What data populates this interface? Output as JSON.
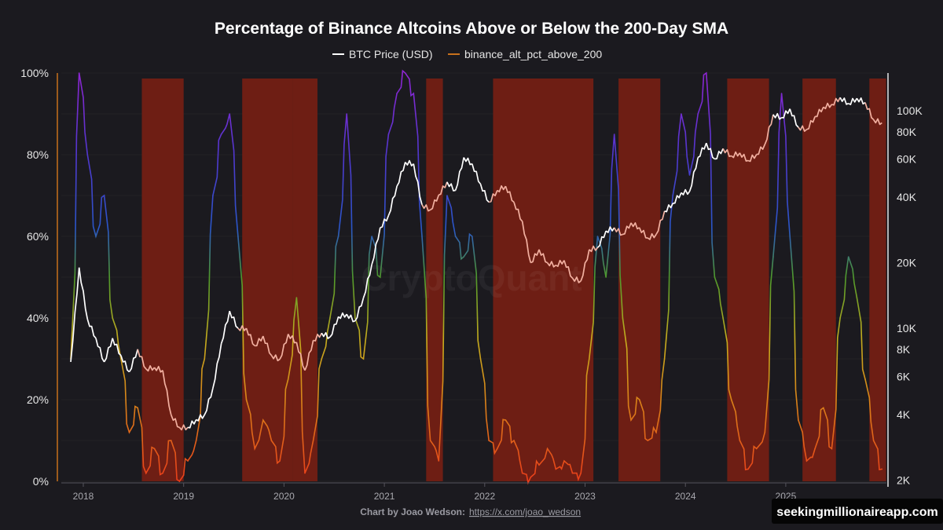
{
  "title": "Percentage of Binance Altcoins Above or Below the 200-Day SMA",
  "credit": {
    "label": "Chart by Joao Wedson:",
    "link": "https://x.com/joao_wedson"
  },
  "watermark": "CryptoQuant",
  "badge": "seekingmillionaireapp.com",
  "colors": {
    "background": "#1b1a1f",
    "btc": "#ffffff",
    "btc_in_band": "#f2b0a0",
    "band": "#6e1e14",
    "alt_axis": "#c8711c",
    "gradient": [
      [
        "0",
        "#ea3d1a"
      ],
      [
        "20",
        "#d98419"
      ],
      [
        "35",
        "#c5ad1e"
      ],
      [
        "50",
        "#4f9a2b"
      ],
      [
        "62",
        "#2a56c9"
      ],
      [
        "80",
        "#5137cf"
      ],
      [
        "100",
        "#8e25d2"
      ]
    ]
  },
  "chart_data": {
    "type": "line",
    "title": "Percentage of Binance Altcoins Above or Below the 200-Day SMA",
    "legend": {
      "placement": "top-center",
      "entries": [
        "BTC Price (USD)",
        "binance_alt_pct_above_200"
      ]
    },
    "grid": true,
    "x_axis": {
      "type": "date",
      "range": [
        "2017-11",
        "2025-12"
      ],
      "ticks": [
        "2018",
        "2019",
        "2020",
        "2021",
        "2022",
        "2023",
        "2024",
        "2025"
      ]
    },
    "y_left": {
      "range": [
        0,
        100
      ],
      "unit": "%",
      "ticks": [
        "0%",
        "20%",
        "40%",
        "60%",
        "80%",
        "100%"
      ]
    },
    "y_right": {
      "scale": "log",
      "range": [
        2000,
        150000
      ],
      "ticks": [
        [
          "2K",
          2000
        ],
        [
          "4K",
          4000
        ],
        [
          "6K",
          6000
        ],
        [
          "8K",
          8000
        ],
        [
          "10K",
          10000
        ],
        [
          "20K",
          20000
        ],
        [
          "40K",
          40000
        ],
        [
          "60K",
          60000
        ],
        [
          "80K",
          80000
        ],
        [
          "100K",
          100000
        ]
      ]
    },
    "highlight_bands": [
      [
        "2018-08",
        "2018-12"
      ],
      [
        "2019-08",
        "2020-01"
      ],
      [
        "2020-02",
        "2020-04"
      ],
      [
        "2021-06",
        "2021-07"
      ],
      [
        "2022-02",
        "2023-01"
      ],
      [
        "2023-05",
        "2023-09"
      ],
      [
        "2024-06",
        "2024-10"
      ],
      [
        "2025-03",
        "2025-06"
      ],
      [
        "2025-11",
        "2025-12"
      ]
    ],
    "series": [
      {
        "name": "BTC Price (USD)",
        "axis": "right",
        "points": [
          [
            "2017-11",
            7000
          ],
          [
            "2017-12",
            19000
          ],
          [
            "2018-01",
            11000
          ],
          [
            "2018-02",
            9000
          ],
          [
            "2018-03",
            7000
          ],
          [
            "2018-04",
            9000
          ],
          [
            "2018-05",
            7500
          ],
          [
            "2018-06",
            6300
          ],
          [
            "2018-07",
            8000
          ],
          [
            "2018-08",
            6500
          ],
          [
            "2018-09",
            6600
          ],
          [
            "2018-10",
            6400
          ],
          [
            "2018-11",
            4000
          ],
          [
            "2018-12",
            3500
          ],
          [
            "2019-01",
            3500
          ],
          [
            "2019-02",
            3800
          ],
          [
            "2019-03",
            4000
          ],
          [
            "2019-04",
            5300
          ],
          [
            "2019-05",
            8500
          ],
          [
            "2019-06",
            12000
          ],
          [
            "2019-07",
            10000
          ],
          [
            "2019-08",
            10000
          ],
          [
            "2019-09",
            8300
          ],
          [
            "2019-10",
            9200
          ],
          [
            "2019-11",
            7500
          ],
          [
            "2019-12",
            7200
          ],
          [
            "2020-01",
            9400
          ],
          [
            "2020-02",
            8600
          ],
          [
            "2020-03",
            6400
          ],
          [
            "2020-04",
            8800
          ],
          [
            "2020-05",
            9500
          ],
          [
            "2020-06",
            9100
          ],
          [
            "2020-07",
            11300
          ],
          [
            "2020-08",
            11600
          ],
          [
            "2020-09",
            10800
          ],
          [
            "2020-10",
            13800
          ],
          [
            "2020-11",
            19600
          ],
          [
            "2020-12",
            29000
          ],
          [
            "2021-01",
            33000
          ],
          [
            "2021-02",
            45000
          ],
          [
            "2021-03",
            58000
          ],
          [
            "2021-04",
            57000
          ],
          [
            "2021-05",
            37000
          ],
          [
            "2021-06",
            35000
          ],
          [
            "2021-07",
            41000
          ],
          [
            "2021-08",
            47000
          ],
          [
            "2021-09",
            43000
          ],
          [
            "2021-10",
            61000
          ],
          [
            "2021-11",
            57000
          ],
          [
            "2021-12",
            46000
          ],
          [
            "2022-01",
            38000
          ],
          [
            "2022-02",
            43000
          ],
          [
            "2022-03",
            45000
          ],
          [
            "2022-04",
            38000
          ],
          [
            "2022-05",
            31000
          ],
          [
            "2022-06",
            20000
          ],
          [
            "2022-07",
            23000
          ],
          [
            "2022-08",
            20000
          ],
          [
            "2022-09",
            19500
          ],
          [
            "2022-10",
            20500
          ],
          [
            "2022-11",
            17000
          ],
          [
            "2022-12",
            16500
          ],
          [
            "2023-01",
            23000
          ],
          [
            "2023-02",
            23500
          ],
          [
            "2023-03",
            28000
          ],
          [
            "2023-04",
            29000
          ],
          [
            "2023-05",
            27000
          ],
          [
            "2023-06",
            30500
          ],
          [
            "2023-07",
            29000
          ],
          [
            "2023-08",
            26000
          ],
          [
            "2023-09",
            27000
          ],
          [
            "2023-10",
            34500
          ],
          [
            "2023-11",
            37500
          ],
          [
            "2023-12",
            42000
          ],
          [
            "2024-01",
            42500
          ],
          [
            "2024-02",
            61000
          ],
          [
            "2024-03",
            71000
          ],
          [
            "2024-04",
            60000
          ],
          [
            "2024-05",
            67000
          ],
          [
            "2024-06",
            62000
          ],
          [
            "2024-07",
            64000
          ],
          [
            "2024-08",
            59000
          ],
          [
            "2024-09",
            63000
          ],
          [
            "2024-10",
            70000
          ],
          [
            "2024-11",
            96000
          ],
          [
            "2024-12",
            93000
          ],
          [
            "2025-01",
            102000
          ],
          [
            "2025-02",
            84000
          ],
          [
            "2025-03",
            82000
          ],
          [
            "2025-04",
            94000
          ],
          [
            "2025-05",
            104000
          ],
          [
            "2025-06",
            107000
          ],
          [
            "2025-07",
            115000
          ],
          [
            "2025-08",
            108000
          ],
          [
            "2025-09",
            114000
          ],
          [
            "2025-10",
            109000
          ],
          [
            "2025-11",
            91000
          ],
          [
            "2025-12",
            88000
          ]
        ]
      },
      {
        "name": "binance_alt_pct_above_200",
        "axis": "left",
        "points": [
          [
            "2017-11",
            30
          ],
          [
            "2017-12",
            100
          ],
          [
            "2018-01",
            80
          ],
          [
            "2018-02",
            60
          ],
          [
            "2018-03",
            70
          ],
          [
            "2018-04",
            40
          ],
          [
            "2018-05",
            30
          ],
          [
            "2018-06",
            12
          ],
          [
            "2018-07",
            18
          ],
          [
            "2018-08",
            2
          ],
          [
            "2018-09",
            8
          ],
          [
            "2018-10",
            2
          ],
          [
            "2018-11",
            10
          ],
          [
            "2018-12",
            0
          ],
          [
            "2019-01",
            5
          ],
          [
            "2019-02",
            10
          ],
          [
            "2019-03",
            30
          ],
          [
            "2019-04",
            70
          ],
          [
            "2019-05",
            85
          ],
          [
            "2019-06",
            90
          ],
          [
            "2019-07",
            60
          ],
          [
            "2019-08",
            20
          ],
          [
            "2019-09",
            8
          ],
          [
            "2019-10",
            15
          ],
          [
            "2019-11",
            10
          ],
          [
            "2019-12",
            5
          ],
          [
            "2020-01",
            25
          ],
          [
            "2020-02",
            45
          ],
          [
            "2020-03",
            2
          ],
          [
            "2020-04",
            10
          ],
          [
            "2020-05",
            30
          ],
          [
            "2020-06",
            40
          ],
          [
            "2020-07",
            60
          ],
          [
            "2020-08",
            90
          ],
          [
            "2020-09",
            40
          ],
          [
            "2020-10",
            30
          ],
          [
            "2020-11",
            60
          ],
          [
            "2020-12",
            50
          ],
          [
            "2021-01",
            85
          ],
          [
            "2021-02",
            95
          ],
          [
            "2021-03",
            100
          ],
          [
            "2021-04",
            95
          ],
          [
            "2021-05",
            60
          ],
          [
            "2021-06",
            10
          ],
          [
            "2021-07",
            5
          ],
          [
            "2021-08",
            70
          ],
          [
            "2021-09",
            60
          ],
          [
            "2021-10",
            55
          ],
          [
            "2021-11",
            60
          ],
          [
            "2021-12",
            30
          ],
          [
            "2022-01",
            10
          ],
          [
            "2022-02",
            8
          ],
          [
            "2022-03",
            15
          ],
          [
            "2022-04",
            10
          ],
          [
            "2022-05",
            2
          ],
          [
            "2022-06",
            1
          ],
          [
            "2022-07",
            4
          ],
          [
            "2022-08",
            8
          ],
          [
            "2022-09",
            3
          ],
          [
            "2022-10",
            5
          ],
          [
            "2022-11",
            2
          ],
          [
            "2022-12",
            2
          ],
          [
            "2023-01",
            30
          ],
          [
            "2023-02",
            60
          ],
          [
            "2023-03",
            50
          ],
          [
            "2023-04",
            85
          ],
          [
            "2023-05",
            40
          ],
          [
            "2023-06",
            15
          ],
          [
            "2023-07",
            20
          ],
          [
            "2023-08",
            10
          ],
          [
            "2023-09",
            12
          ],
          [
            "2023-10",
            30
          ],
          [
            "2023-11",
            70
          ],
          [
            "2023-12",
            90
          ],
          [
            "2024-01",
            75
          ],
          [
            "2024-02",
            90
          ],
          [
            "2024-03",
            100
          ],
          [
            "2024-04",
            50
          ],
          [
            "2024-05",
            40
          ],
          [
            "2024-06",
            20
          ],
          [
            "2024-07",
            10
          ],
          [
            "2024-08",
            3
          ],
          [
            "2024-09",
            8
          ],
          [
            "2024-10",
            12
          ],
          [
            "2024-11",
            55
          ],
          [
            "2024-12",
            95
          ],
          [
            "2025-01",
            60
          ],
          [
            "2025-02",
            15
          ],
          [
            "2025-03",
            5
          ],
          [
            "2025-04",
            8
          ],
          [
            "2025-05",
            18
          ],
          [
            "2025-06",
            8
          ],
          [
            "2025-07",
            40
          ],
          [
            "2025-08",
            55
          ],
          [
            "2025-09",
            45
          ],
          [
            "2025-10",
            25
          ],
          [
            "2025-11",
            10
          ],
          [
            "2025-12",
            3
          ]
        ]
      }
    ]
  }
}
